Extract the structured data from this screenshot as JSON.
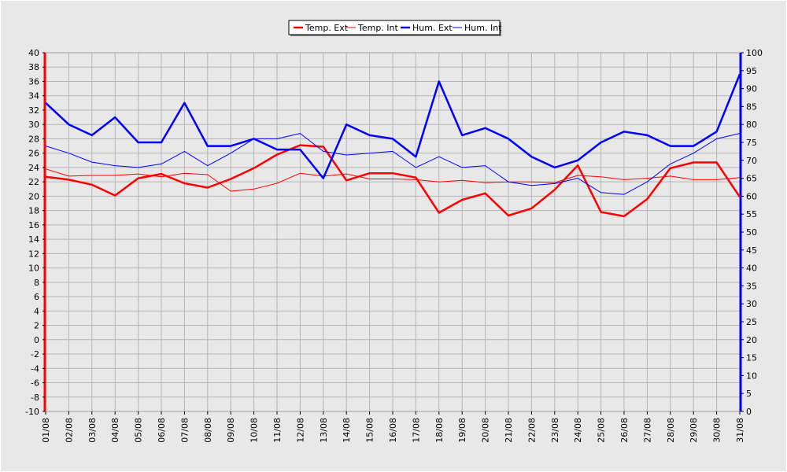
{
  "chart_data": {
    "type": "line",
    "x": [
      "01/08",
      "02/08",
      "03/08",
      "04/08",
      "05/08",
      "06/08",
      "07/08",
      "08/08",
      "09/08",
      "10/08",
      "11/08",
      "12/08",
      "13/08",
      "14/08",
      "15/08",
      "16/08",
      "17/08",
      "18/08",
      "19/08",
      "20/08",
      "21/08",
      "22/08",
      "23/08",
      "24/08",
      "25/08",
      "26/08",
      "27/08",
      "28/08",
      "29/08",
      "30/08",
      "31/08"
    ],
    "y_left_range": [
      -10,
      40
    ],
    "y_right_range": [
      0,
      100
    ],
    "y_left_ticks": [
      -10,
      -8,
      -6,
      -4,
      -2,
      0,
      2,
      4,
      6,
      8,
      10,
      12,
      14,
      16,
      18,
      20,
      22,
      24,
      26,
      28,
      30,
      32,
      34,
      36,
      38,
      40
    ],
    "y_right_ticks": [
      0,
      5,
      10,
      15,
      20,
      25,
      30,
      35,
      40,
      45,
      50,
      55,
      60,
      65,
      70,
      75,
      80,
      85,
      90,
      95,
      100
    ],
    "grid": true,
    "legend_position": "top-center",
    "series": [
      {
        "name": "Temp. Ext",
        "axis": "left",
        "color": "#ff0000",
        "weight": "thick",
        "values": [
          22.7,
          22.3,
          21.6,
          20.1,
          22.5,
          23.1,
          21.8,
          21.2,
          22.4,
          23.9,
          25.8,
          27.1,
          26.9,
          22.2,
          23.2,
          23.2,
          22.6,
          17.7,
          19.5,
          20.4,
          17.3,
          18.3,
          20.9,
          24.3,
          17.8,
          17.2,
          19.6,
          23.9,
          24.7,
          24.7,
          19.9
        ]
      },
      {
        "name": "Temp. Int",
        "axis": "left",
        "color": "#ff0000",
        "weight": "thin",
        "values": [
          23.8,
          22.8,
          22.9,
          22.9,
          23.1,
          22.7,
          23.2,
          23.0,
          20.7,
          21.0,
          21.8,
          23.2,
          22.8,
          23.1,
          22.4,
          22.4,
          22.3,
          22.0,
          22.2,
          21.9,
          22.0,
          22.0,
          21.9,
          22.9,
          22.7,
          22.3,
          22.5,
          22.8,
          22.3,
          22.3,
          22.6
        ]
      },
      {
        "name": "Hum. Ext",
        "axis": "right",
        "color": "#0000ff",
        "weight": "thick",
        "values": [
          86,
          80,
          77,
          82,
          75,
          75,
          86,
          74,
          74,
          76,
          73,
          73,
          65,
          80,
          77,
          76,
          71,
          92,
          77,
          79,
          76,
          71,
          68,
          70,
          75,
          78,
          77,
          74,
          74,
          78,
          94
        ]
      },
      {
        "name": "Hum. Int",
        "axis": "right",
        "color": "#0000ff",
        "weight": "thin",
        "values": [
          74,
          72,
          69.5,
          68.5,
          68,
          69,
          72.5,
          68.5,
          72,
          76,
          76,
          77.5,
          72.5,
          71.5,
          72,
          72.5,
          68,
          71,
          68,
          68.5,
          64,
          63,
          63.5,
          65,
          61,
          60.5,
          64,
          69,
          72,
          76,
          77.5
        ]
      }
    ]
  }
}
